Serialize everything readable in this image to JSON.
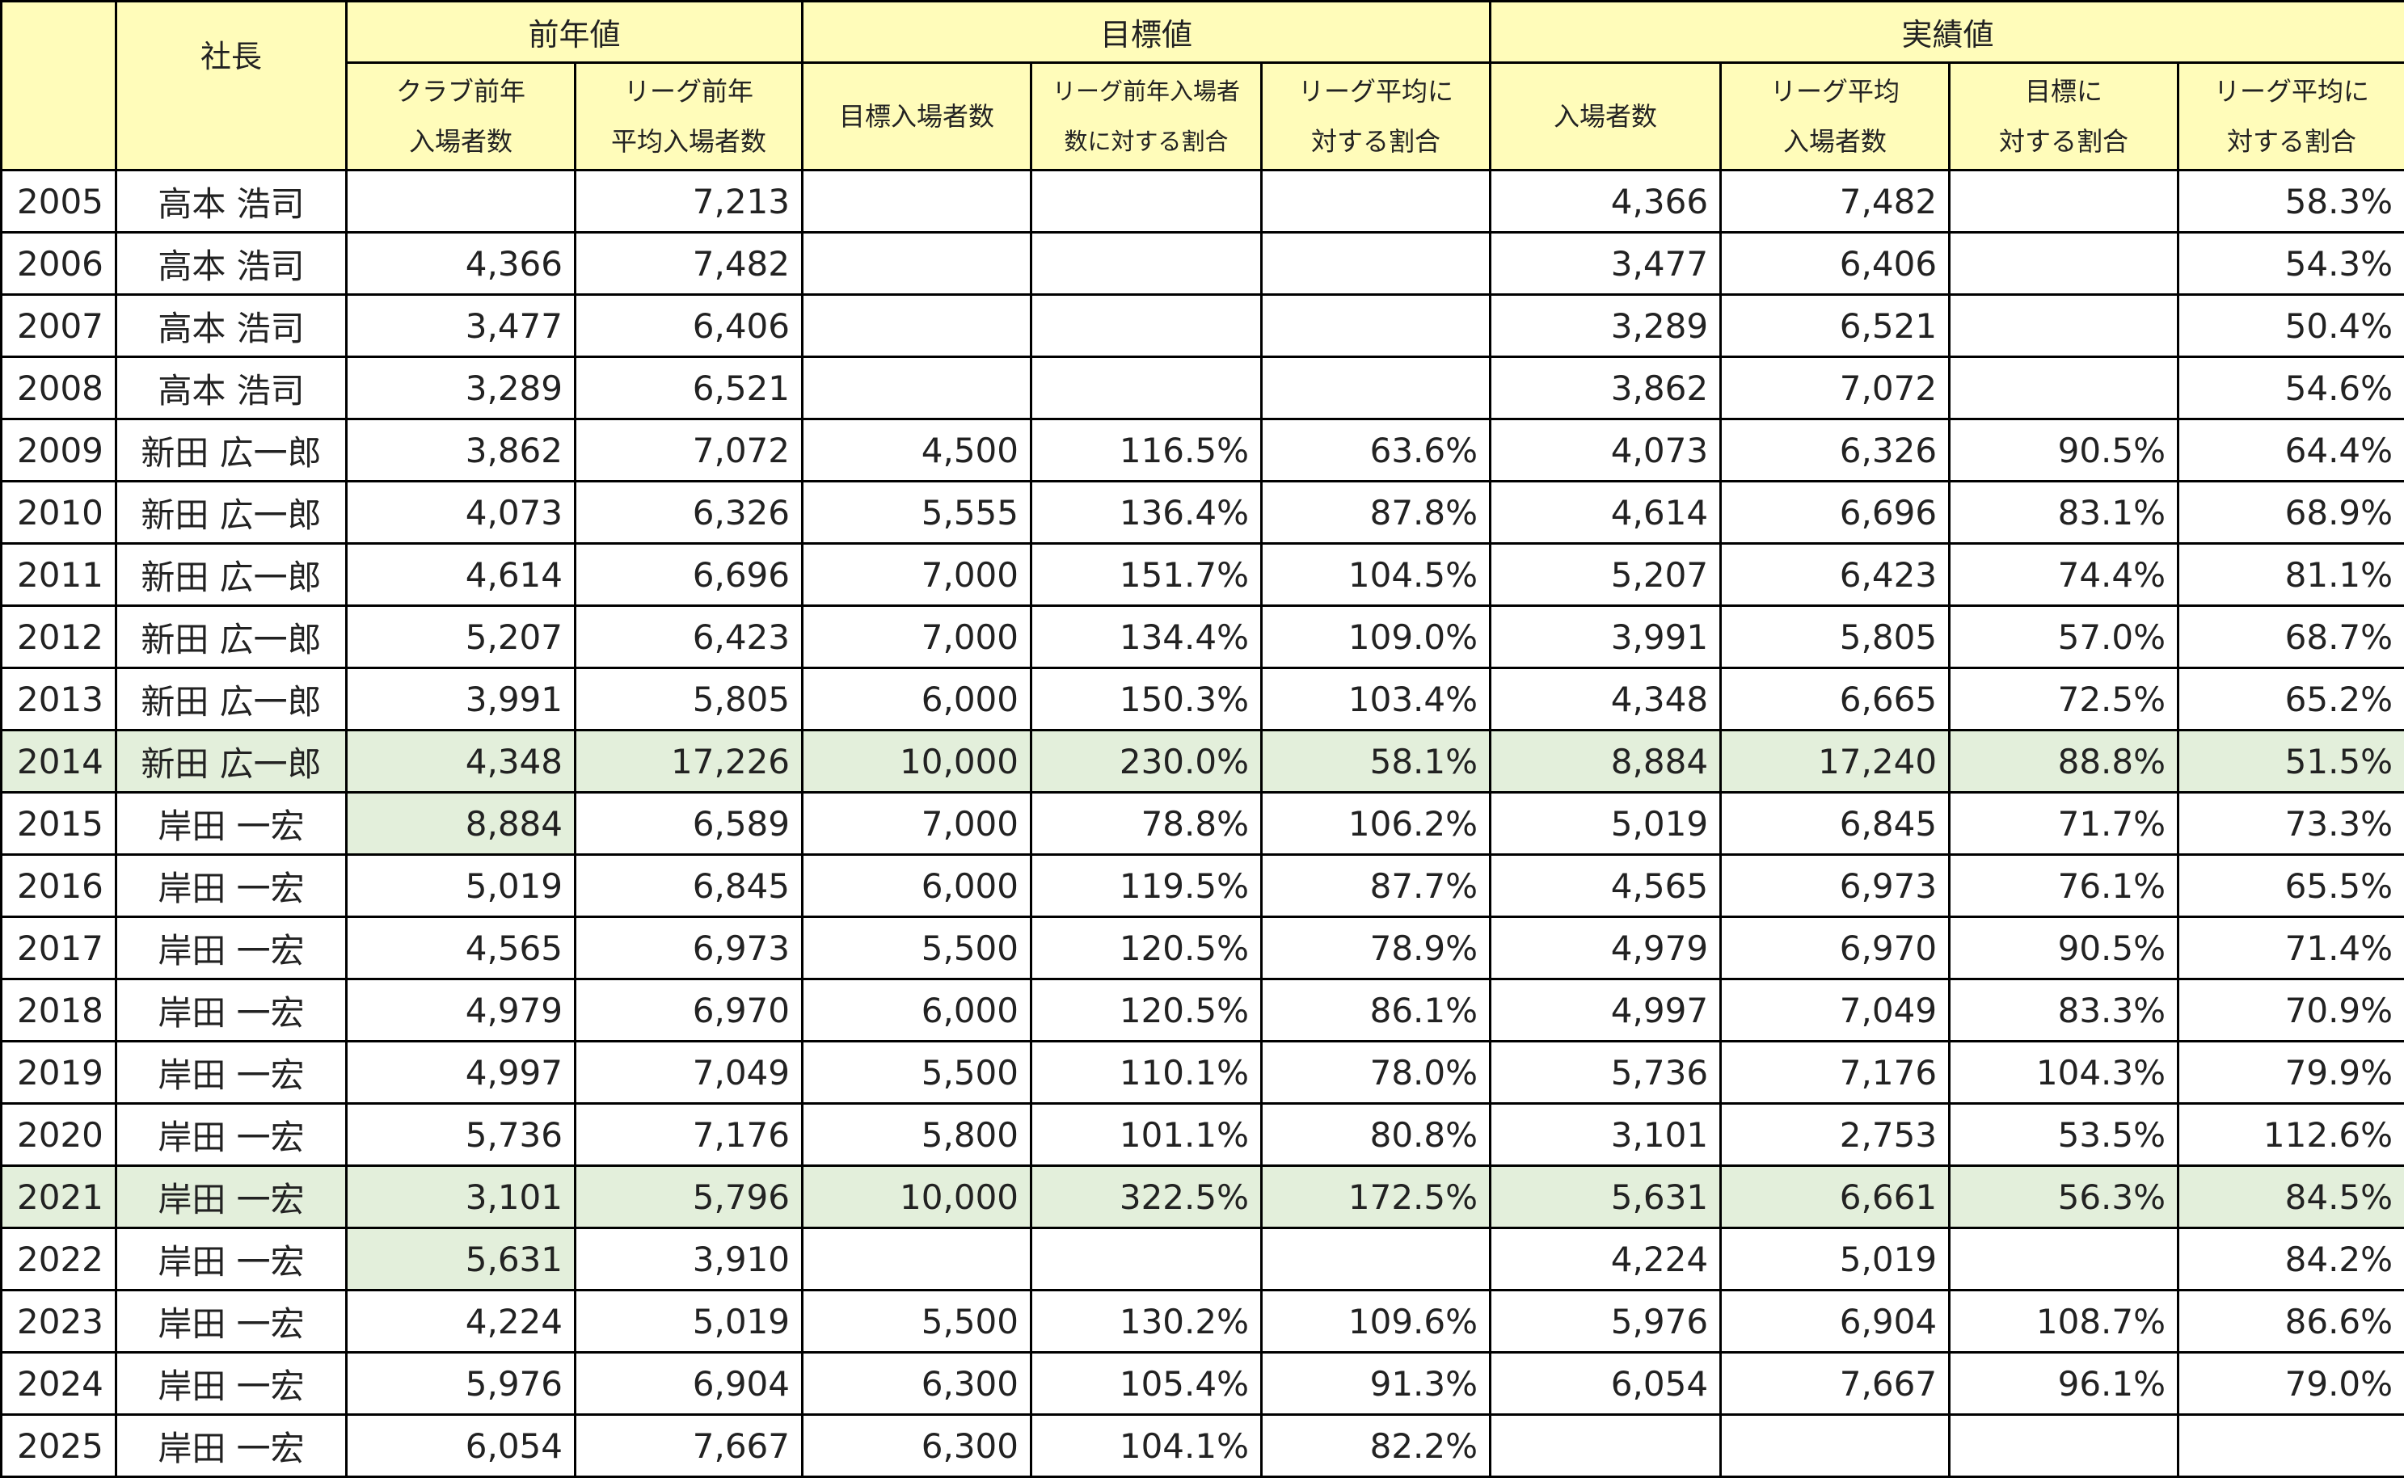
{
  "table": {
    "group_headers": [
      "社長",
      "前年値",
      "目標値",
      "実績値"
    ],
    "sub_headers": [
      "クラブ前年\n入場者数",
      "リーグ前年\n平均入場者数",
      "目標入場者数",
      "リーグ前年入場者\n数に対する割合",
      "リーグ平均に\n対する割合",
      "入場者数",
      "リーグ平均\n入場者数",
      "目標に\n対する割合",
      "リーグ平均に\n対する割合"
    ],
    "rows": [
      [
        "2005",
        "高本 浩司",
        null,
        "7,213",
        null,
        null,
        null,
        "4,366",
        "7,482",
        null,
        "58.3%"
      ],
      [
        "2006",
        "高本 浩司",
        "4,366",
        "7,482",
        null,
        null,
        null,
        "3,477",
        "6,406",
        null,
        "54.3%"
      ],
      [
        "2007",
        "高本 浩司",
        "3,477",
        "6,406",
        null,
        null,
        null,
        "3,289",
        "6,521",
        null,
        "50.4%"
      ],
      [
        "2008",
        "高本 浩司",
        "3,289",
        "6,521",
        null,
        null,
        null,
        "3,862",
        "7,072",
        null,
        "54.6%"
      ],
      [
        "2009",
        "新田 広一郎",
        "3,862",
        "7,072",
        "4,500",
        "116.5%",
        "63.6%",
        "4,073",
        "6,326",
        "90.5%",
        "64.4%"
      ],
      [
        "2010",
        "新田 広一郎",
        "4,073",
        "6,326",
        "5,555",
        "136.4%",
        "87.8%",
        "4,614",
        "6,696",
        "83.1%",
        "68.9%"
      ],
      [
        "2011",
        "新田 広一郎",
        "4,614",
        "6,696",
        "7,000",
        "151.7%",
        "104.5%",
        "5,207",
        "6,423",
        "74.4%",
        "81.1%"
      ],
      [
        "2012",
        "新田 広一郎",
        "5,207",
        "6,423",
        "7,000",
        "134.4%",
        "109.0%",
        "3,991",
        "5,805",
        "57.0%",
        "68.7%"
      ],
      [
        "2013",
        "新田 広一郎",
        "3,991",
        "5,805",
        "6,000",
        "150.3%",
        "103.4%",
        "4,348",
        "6,665",
        "72.5%",
        "65.2%"
      ],
      [
        "2014",
        "新田 広一郎",
        "4,348",
        "17,226",
        "10,000",
        "230.0%",
        "58.1%",
        "8,884",
        "17,240",
        "88.8%",
        "51.5%"
      ],
      [
        "2015",
        "岸田 一宏",
        "8,884",
        "6,589",
        "7,000",
        "78.8%",
        "106.2%",
        "5,019",
        "6,845",
        "71.7%",
        "73.3%"
      ],
      [
        "2016",
        "岸田 一宏",
        "5,019",
        "6,845",
        "6,000",
        "119.5%",
        "87.7%",
        "4,565",
        "6,973",
        "76.1%",
        "65.5%"
      ],
      [
        "2017",
        "岸田 一宏",
        "4,565",
        "6,973",
        "5,500",
        "120.5%",
        "78.9%",
        "4,979",
        "6,970",
        "90.5%",
        "71.4%"
      ],
      [
        "2018",
        "岸田 一宏",
        "4,979",
        "6,970",
        "6,000",
        "120.5%",
        "86.1%",
        "4,997",
        "7,049",
        "83.3%",
        "70.9%"
      ],
      [
        "2019",
        "岸田 一宏",
        "4,997",
        "7,049",
        "5,500",
        "110.1%",
        "78.0%",
        "5,736",
        "7,176",
        "104.3%",
        "79.9%"
      ],
      [
        "2020",
        "岸田 一宏",
        "5,736",
        "7,176",
        "5,800",
        "101.1%",
        "80.8%",
        "3,101",
        "2,753",
        "53.5%",
        "112.6%"
      ],
      [
        "2021",
        "岸田 一宏",
        "3,101",
        "5,796",
        "10,000",
        "322.5%",
        "172.5%",
        "5,631",
        "6,661",
        "56.3%",
        "84.5%"
      ],
      [
        "2022",
        "岸田 一宏",
        "5,631",
        "3,910",
        null,
        null,
        null,
        "4,224",
        "5,019",
        null,
        "84.2%"
      ],
      [
        "2023",
        "岸田 一宏",
        "4,224",
        "5,019",
        "5,500",
        "130.2%",
        "109.6%",
        "5,976",
        "6,904",
        "108.7%",
        "86.6%"
      ],
      [
        "2024",
        "岸田 一宏",
        "5,976",
        "6,904",
        "6,300",
        "105.4%",
        "91.3%",
        "6,054",
        "7,667",
        "96.1%",
        "79.0%"
      ],
      [
        "2025",
        "岸田 一宏",
        "6,054",
        "7,667",
        "6,300",
        "104.1%",
        "82.2%",
        null,
        null,
        null,
        null
      ]
    ]
  }
}
